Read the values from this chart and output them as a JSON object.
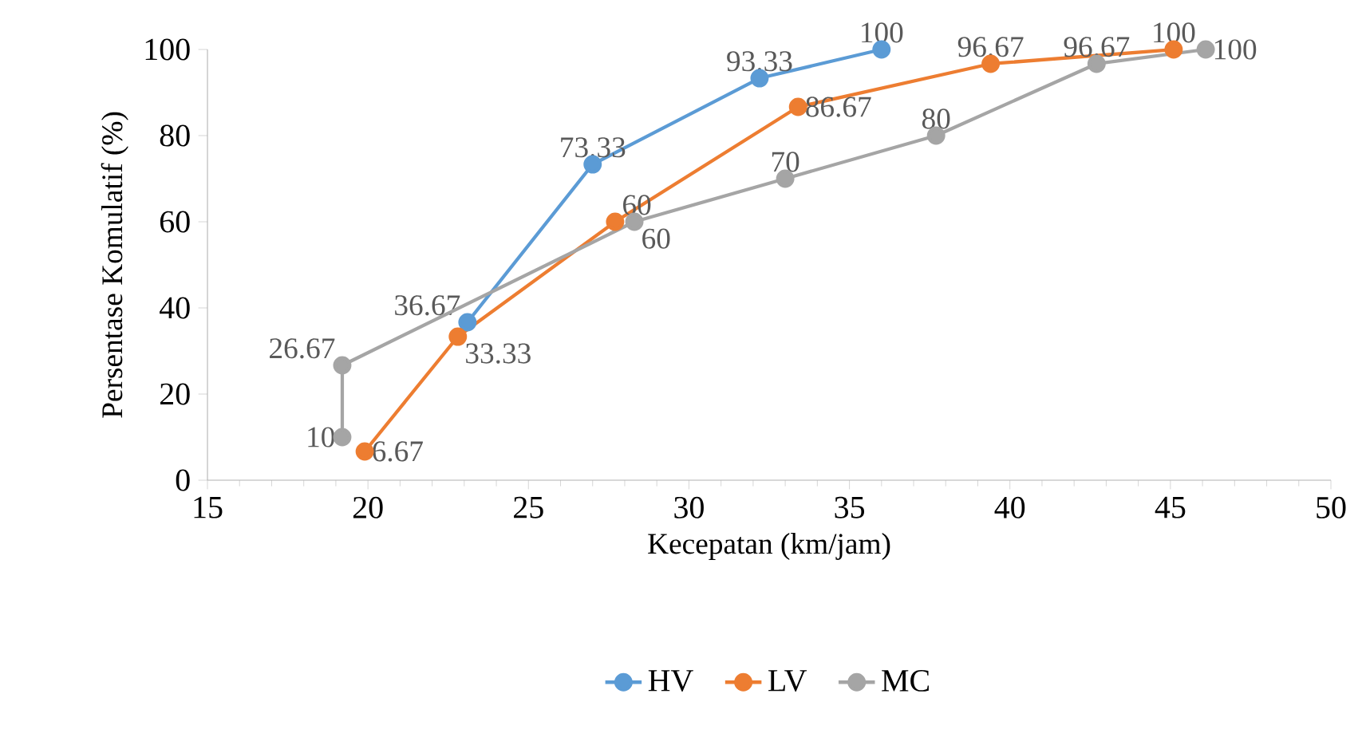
{
  "chart_data": {
    "type": "line",
    "xlabel": "Kecepatan (km/jam)",
    "ylabel": "Persentase Komulatif (%)",
    "xlim": [
      15,
      50
    ],
    "xticks": [
      15,
      20,
      25,
      30,
      35,
      40,
      45,
      50
    ],
    "ylim": [
      0,
      100
    ],
    "yticks": [
      0,
      20,
      40,
      60,
      80,
      100
    ],
    "grid": false,
    "legend": "bottom",
    "marker": "circle",
    "data_labels": true,
    "series": [
      {
        "name": "HV",
        "color": "#5b9bd5",
        "x": [
          23.1,
          27.0,
          32.2,
          36.0
        ],
        "values": [
          36.67,
          73.33,
          93.33,
          100
        ]
      },
      {
        "name": "LV",
        "color": "#ed7d31",
        "x": [
          19.9,
          22.8,
          27.7,
          33.4,
          39.4,
          45.1
        ],
        "values": [
          6.67,
          33.33,
          60,
          86.67,
          96.67,
          100
        ]
      },
      {
        "name": "MC",
        "color": "#a5a5a5",
        "x": [
          19.2,
          19.2,
          28.3,
          33.0,
          37.7,
          42.7,
          46.1
        ],
        "values": [
          10,
          26.67,
          60,
          70,
          80,
          96.67,
          100
        ]
      }
    ]
  }
}
